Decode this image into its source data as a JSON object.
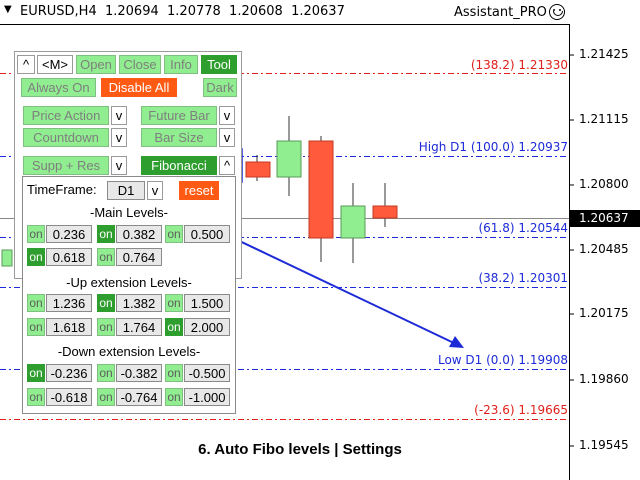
{
  "header": {
    "symbol": "EURUSD,H4",
    "open": "1.20694",
    "high": "1.20778",
    "low": "1.20608",
    "close": "1.20637",
    "assistant": "Assistant_PRO"
  },
  "price_axis": {
    "labels": [
      "1.21425",
      "1.21115",
      "1.20800",
      "1.20485",
      "1.20175",
      "1.19860",
      "1.19545"
    ],
    "current_price": "1.20637"
  },
  "fib_labels": {
    "l1382": "(138.2) 1.21330",
    "high": "High D1 (100.0) 1.20937",
    "l618": "(61.8) 1.20544",
    "l382": "(38.2) 1.20301",
    "low": "Low D1 (0.0) 1.19908",
    "lm236": "(-23.6) 1.19665"
  },
  "toolbar": {
    "caret": "^",
    "menu": "<M>",
    "open": "Open",
    "close": "Close",
    "info": "Info",
    "tool": "Tool",
    "always_on": "Always On",
    "disable_all": "Disable All",
    "dark": "Dark",
    "price_action": "Price Action",
    "future_bar": "Future Bar",
    "countdown": "Countdown",
    "bar_size": "Bar Size",
    "supp_res": "Supp + Res",
    "fibonacci": "Fibonacci",
    "dropdown": "v",
    "fib_caret": "^"
  },
  "fibo_settings": {
    "timeframe_label": "TimeFrame:",
    "timeframe_value": "D1",
    "timeframe_dropdown": "v",
    "reset": "reset",
    "main_title": "-Main Levels-",
    "up_title": "-Up extension Levels-",
    "down_title": "-Down extension Levels-",
    "on_label": "on",
    "main": [
      {
        "value": "0.236",
        "on": false
      },
      {
        "value": "0.382",
        "on": true
      },
      {
        "value": "0.500",
        "on": false
      },
      {
        "value": "0.618",
        "on": true
      },
      {
        "value": "0.764",
        "on": false
      }
    ],
    "up": [
      {
        "value": "1.236",
        "on": false
      },
      {
        "value": "1.382",
        "on": true
      },
      {
        "value": "1.500",
        "on": false
      },
      {
        "value": "1.618",
        "on": false
      },
      {
        "value": "1.764",
        "on": false
      },
      {
        "value": "2.000",
        "on": true
      }
    ],
    "down": [
      {
        "value": "-0.236",
        "on": true
      },
      {
        "value": "-0.382",
        "on": false
      },
      {
        "value": "-0.500",
        "on": false
      },
      {
        "value": "-0.618",
        "on": false
      },
      {
        "value": "-0.764",
        "on": false
      },
      {
        "value": "-1.000",
        "on": false
      }
    ]
  },
  "caption": "6. Auto Fibo levels | Settings",
  "colors": {
    "bull": "#90ee90",
    "bear": "#ff5a3c",
    "fib_red": "#e0201a",
    "fib_blue": "#1c2ad8",
    "arrow": "#1c2ad8"
  }
}
